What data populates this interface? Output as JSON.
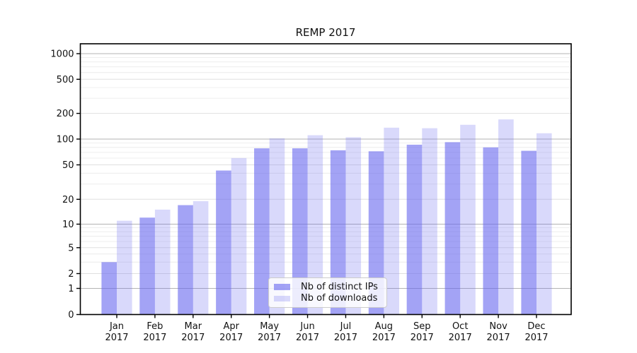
{
  "chart_data": {
    "type": "bar",
    "title": "REMP 2017",
    "categories": [
      "Jan 2017",
      "Feb 2017",
      "Mar 2017",
      "Apr 2017",
      "May 2017",
      "Jun 2017",
      "Jul 2017",
      "Aug 2017",
      "Sep 2017",
      "Oct 2017",
      "Nov 2017",
      "Dec 2017"
    ],
    "series": [
      {
        "name": "Nb of distinct IPs",
        "color": "rgba(102,102,238,0.60)",
        "values": [
          3,
          12,
          17,
          43,
          78,
          78,
          74,
          72,
          86,
          92,
          80,
          73
        ]
      },
      {
        "name": "Nb of downloads",
        "color": "rgba(102,102,238,0.25)",
        "values": [
          11,
          15,
          19,
          60,
          102,
          111,
          105,
          136,
          134,
          147,
          170,
          117
        ]
      }
    ],
    "xlabel": "",
    "ylabel": "",
    "yscale": "symlog",
    "yticks": [
      0,
      1,
      2,
      5,
      10,
      20,
      50,
      100,
      200,
      500,
      1000
    ],
    "ylim": [
      0,
      1300
    ],
    "grid": "horizontal major and minor gridlines",
    "legend_position": "inside lower center"
  },
  "colors": {
    "bar_base": "#6666ee",
    "grid_major": "#b3b3b3",
    "grid_mid": "#e0e0e0",
    "grid_minor": "#ececec",
    "axis": "#000000",
    "text": "#111111",
    "legend_border": "#cccccc"
  }
}
